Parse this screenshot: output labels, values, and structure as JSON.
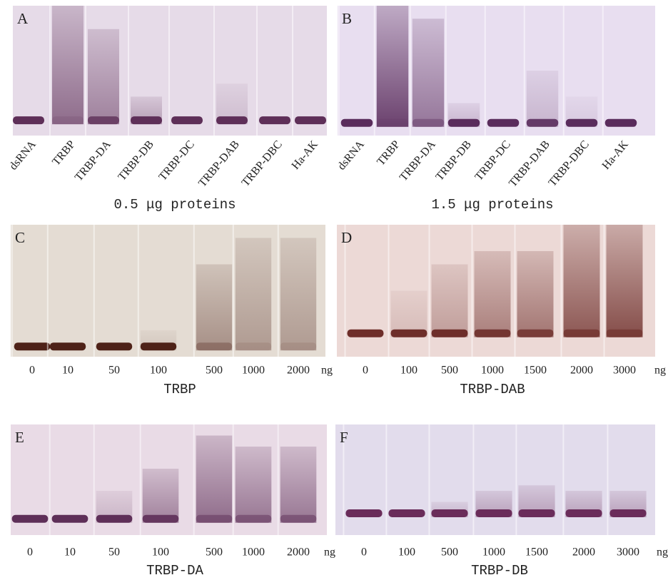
{
  "panels": [
    {
      "letter": "A",
      "lanes": [
        "dsRNA",
        "TRBP",
        "TRBP-DA",
        "TRBP-DB",
        "TRBP-DC",
        "TRBP-DAB",
        "TRBP-DBC",
        "Ha-AK"
      ],
      "caption": "0.5 μg proteins"
    },
    {
      "letter": "B",
      "lanes": [
        "dsRNA",
        "TRBP",
        "TRBP-DA",
        "TRBP-DB",
        "TRBP-DC",
        "TRBP-DAB",
        "TRBP-DBC",
        "Ha-AK"
      ],
      "caption": "1.5 μg proteins"
    },
    {
      "letter": "C",
      "lanes": [
        0,
        10,
        50,
        100,
        500,
        1000,
        2000
      ],
      "unit": "ng",
      "caption": "TRBP"
    },
    {
      "letter": "D",
      "lanes": [
        0,
        100,
        500,
        1000,
        1500,
        2000,
        3000
      ],
      "unit": "ng",
      "caption": "TRBP-DAB"
    },
    {
      "letter": "E",
      "lanes": [
        0,
        10,
        50,
        100,
        500,
        1000,
        2000
      ],
      "unit": "ng",
      "caption": "TRBP-DA"
    },
    {
      "letter": "F",
      "lanes": [
        0,
        100,
        500,
        1000,
        1500,
        2000,
        3000
      ],
      "unit": "ng",
      "caption": "TRBP-DB"
    }
  ]
}
